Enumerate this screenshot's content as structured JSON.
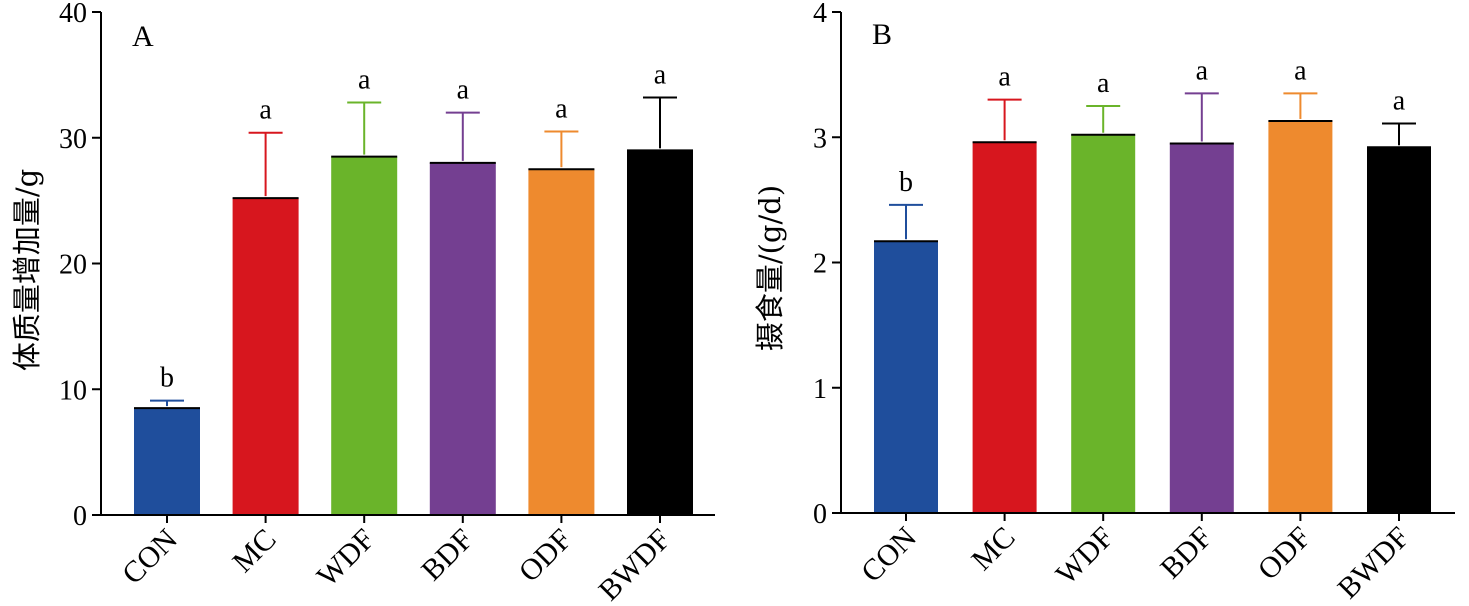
{
  "chart_data": [
    {
      "type": "bar",
      "panel_label": "A",
      "ylabel": "体质量增加量/g",
      "ylim": [
        0,
        40
      ],
      "yticks": [
        "0",
        "10",
        "20",
        "30",
        "40"
      ],
      "categories": [
        "CON",
        "MC",
        "WDF",
        "BDF",
        "ODF",
        "BWDF"
      ],
      "values": [
        8.5,
        25.2,
        28.5,
        28.0,
        27.5,
        29.0
      ],
      "errors": [
        0.6,
        5.2,
        4.3,
        4.0,
        3.0,
        4.2
      ],
      "significance": [
        "b",
        "a",
        "a",
        "a",
        "a",
        "a"
      ],
      "colors": [
        "#1f4e9c",
        "#d7161e",
        "#6ab42a",
        "#743f91",
        "#ee8a2e",
        "#000000"
      ],
      "grid": false
    },
    {
      "type": "bar",
      "panel_label": "B",
      "ylabel": "摄食量/(g/d)",
      "ylim": [
        0,
        4
      ],
      "yticks": [
        "0",
        "1",
        "2",
        "3",
        "4"
      ],
      "categories": [
        "CON",
        "MC",
        "WDF",
        "BDF",
        "ODF",
        "BWDF"
      ],
      "values": [
        2.17,
        2.96,
        3.02,
        2.95,
        3.13,
        2.92
      ],
      "errors": [
        0.29,
        0.34,
        0.23,
        0.4,
        0.22,
        0.19
      ],
      "significance": [
        "b",
        "a",
        "a",
        "a",
        "a",
        "a"
      ],
      "colors": [
        "#1f4e9c",
        "#d7161e",
        "#6ab42a",
        "#743f91",
        "#ee8a2e",
        "#000000"
      ],
      "grid": false
    }
  ]
}
